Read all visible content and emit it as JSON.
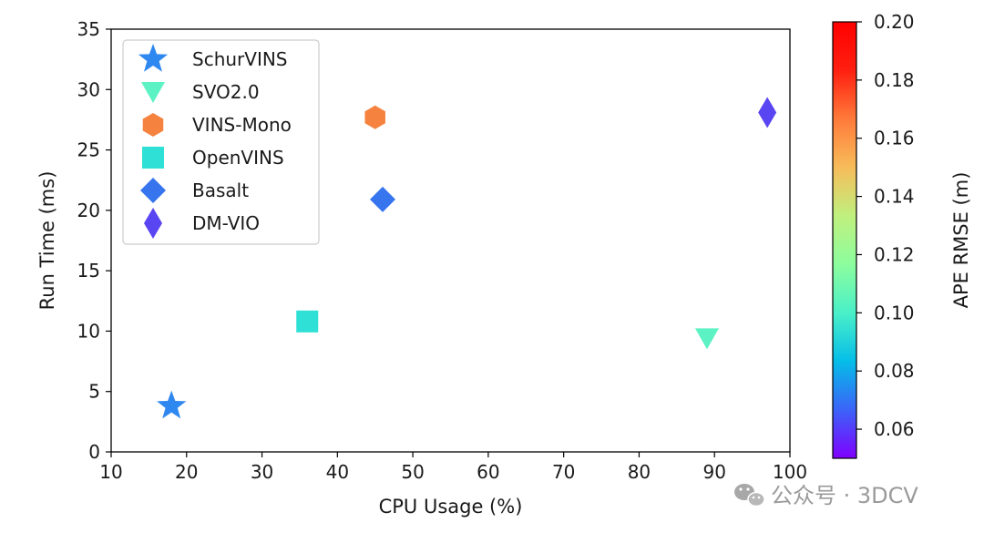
{
  "chart_data": {
    "type": "scatter",
    "title": "",
    "xlabel": "CPU Usage (%)",
    "ylabel": "Run Time (ms)",
    "xlim": [
      10,
      100
    ],
    "ylim": [
      0,
      35
    ],
    "xticks": [
      10,
      20,
      30,
      40,
      50,
      60,
      70,
      80,
      90,
      100
    ],
    "yticks": [
      0,
      5,
      10,
      15,
      20,
      25,
      30,
      35
    ],
    "grid": false,
    "legend_position": "upper-left",
    "series": [
      {
        "name": "SchurVINS",
        "marker": "star",
        "x": 18,
        "y": 3.8,
        "ape_rmse": 0.074,
        "color": "#2f87f0"
      },
      {
        "name": "SVO2.0",
        "marker": "triangle-down",
        "x": 89,
        "y": 9.4,
        "ape_rmse": 0.118,
        "color": "#5cf2c4"
      },
      {
        "name": "VINS-Mono",
        "marker": "hexagon",
        "x": 45,
        "y": 27.7,
        "ape_rmse": 0.176,
        "color": "#f5833f"
      },
      {
        "name": "OpenVINS",
        "marker": "square",
        "x": 36,
        "y": 10.8,
        "ape_rmse": 0.104,
        "color": "#2fe0d6"
      },
      {
        "name": "Basalt",
        "marker": "diamond",
        "x": 46,
        "y": 20.9,
        "ape_rmse": 0.07,
        "color": "#3675ee"
      },
      {
        "name": "DM-VIO",
        "marker": "thin-diamond",
        "x": 97,
        "y": 28.1,
        "ape_rmse": 0.059,
        "color": "#5a45f2"
      }
    ],
    "colorbar": {
      "label": "APE RMSE (m)",
      "range": [
        0.05,
        0.2
      ],
      "ticks": [
        "0.06",
        "0.08",
        "0.10",
        "0.12",
        "0.14",
        "0.16",
        "0.18",
        "0.20"
      ],
      "tick_values": [
        0.06,
        0.08,
        0.1,
        0.12,
        0.14,
        0.16,
        0.18,
        0.2
      ],
      "colormap": "rainbow",
      "gradient_stops": [
        "#7f00ff",
        "#3b63f8",
        "#05bde8",
        "#49f0c8",
        "#8cfd9e",
        "#c0f07e",
        "#f7bc5a",
        "#ff7a3a",
        "#ff1f10",
        "#ff0000"
      ]
    }
  },
  "watermark": {
    "text": "公众号 · 3DCV",
    "icon": "wechat-icon"
  }
}
